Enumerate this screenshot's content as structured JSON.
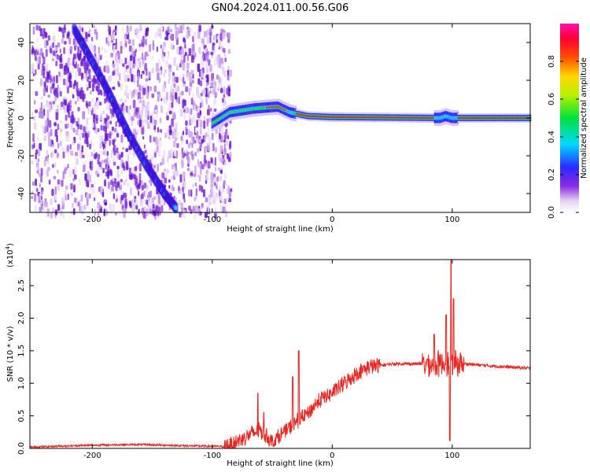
{
  "title": "GN04.2024.011.00.56.G06",
  "chart_data": [
    {
      "type": "heatmap",
      "xlabel": "Height of straight line (km)",
      "ylabel": "Frequency (Hz)",
      "xlim": [
        -252,
        165
      ],
      "ylim": [
        -50,
        50
      ],
      "x_ticks": [
        -200,
        -100,
        0,
        100
      ],
      "y_ticks": [
        -40,
        -20,
        0,
        20,
        40
      ],
      "x_tick_labels": [
        "-200",
        "-100",
        "0",
        "100"
      ],
      "y_tick_labels": [
        "-40",
        "-20",
        "0",
        "20",
        "40"
      ],
      "colorbar": {
        "label": "Normalized spectral amplitude",
        "range": [
          0,
          1
        ],
        "ticks": [
          "0.0",
          "0.2",
          "0.4",
          "0.6",
          "0.8"
        ],
        "colormap": "rainbow: white, violet, blue, cyan, green, yellow, red, magenta"
      },
      "noise_region_x": [
        -252,
        -85
      ],
      "doppler_track": [
        {
          "x": -215,
          "y": 47
        },
        {
          "x": -200,
          "y": 30
        },
        {
          "x": -185,
          "y": 12
        },
        {
          "x": -170,
          "y": -8
        },
        {
          "x": -155,
          "y": -25
        },
        {
          "x": -140,
          "y": -40
        },
        {
          "x": -130,
          "y": -48
        }
      ],
      "signal_track": [
        {
          "x": -100,
          "y": -3
        },
        {
          "x": -85,
          "y": 3
        },
        {
          "x": -65,
          "y": 5
        },
        {
          "x": -45,
          "y": 6
        },
        {
          "x": -35,
          "y": 3
        },
        {
          "x": -20,
          "y": 1
        },
        {
          "x": 0,
          "y": 0.5
        },
        {
          "x": 90,
          "y": 0
        },
        {
          "x": 95,
          "y": 1
        },
        {
          "x": 100,
          "y": 0
        },
        {
          "x": 165,
          "y": 0
        }
      ],
      "grid": false
    },
    {
      "type": "line",
      "xlabel": "Height of straight line (km)",
      "ylabel": "SNR (10 * v/v)",
      "y_multiplier_label": "(x10",
      "y_multiplier_exp": "4",
      "y_multiplier_close": ")",
      "xlim": [
        -252,
        165
      ],
      "ylim": [
        0,
        2.9
      ],
      "x_ticks": [
        -200,
        -100,
        0,
        100
      ],
      "y_ticks": [
        0.0,
        0.5,
        1.0,
        1.5,
        2.0,
        2.5
      ],
      "x_tick_labels": [
        "-200",
        "-100",
        "0",
        "100"
      ],
      "y_tick_labels": [
        "0.0",
        "0.5",
        "1.0",
        "1.5",
        "2.0",
        "2.5"
      ],
      "series_color": "#e8251f",
      "baseline": [
        {
          "x": -252,
          "y": 0.02
        },
        {
          "x": -200,
          "y": 0.05
        },
        {
          "x": -160,
          "y": 0.06
        },
        {
          "x": -120,
          "y": 0.04
        },
        {
          "x": -90,
          "y": 0.03
        },
        {
          "x": -80,
          "y": 0.1
        },
        {
          "x": -70,
          "y": 0.2
        },
        {
          "x": -60,
          "y": 0.28
        },
        {
          "x": -50,
          "y": 0.1
        },
        {
          "x": -40,
          "y": 0.25
        },
        {
          "x": -30,
          "y": 0.4
        },
        {
          "x": -20,
          "y": 0.55
        },
        {
          "x": -10,
          "y": 0.75
        },
        {
          "x": 0,
          "y": 0.85
        },
        {
          "x": 10,
          "y": 1.0
        },
        {
          "x": 20,
          "y": 1.15
        },
        {
          "x": 30,
          "y": 1.25
        },
        {
          "x": 50,
          "y": 1.3
        },
        {
          "x": 70,
          "y": 1.3
        },
        {
          "x": 90,
          "y": 1.3
        },
        {
          "x": 110,
          "y": 1.3
        },
        {
          "x": 130,
          "y": 1.27
        },
        {
          "x": 165,
          "y": 1.23
        }
      ],
      "spikes": [
        {
          "x": -62,
          "y": 0.85
        },
        {
          "x": -57,
          "y": 0.55
        },
        {
          "x": -28,
          "y": 1.5
        },
        {
          "x": -33,
          "y": 1.1
        },
        {
          "x": 85,
          "y": 1.75
        },
        {
          "x": 95,
          "y": 2.05
        },
        {
          "x": 99,
          "y": 2.9
        },
        {
          "x": 101,
          "y": 2.3
        },
        {
          "x": 98,
          "y": 0.12
        }
      ],
      "grid": false
    }
  ]
}
